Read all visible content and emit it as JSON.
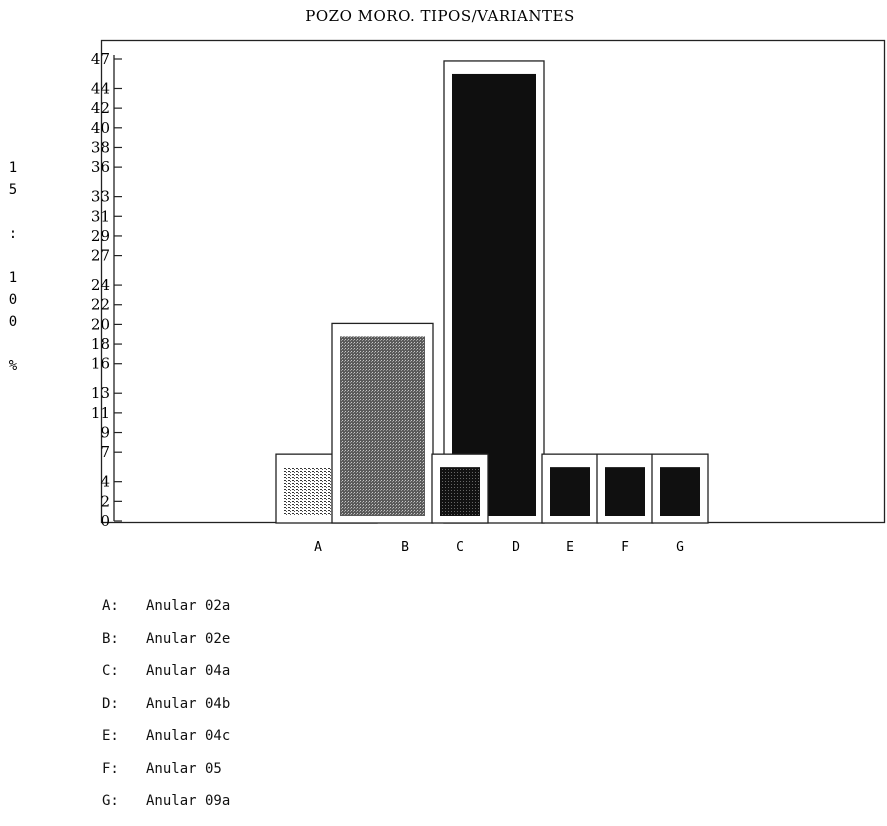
{
  "chart_data": {
    "type": "bar",
    "title": "POZO MORO. TIPOS/VARIANTES",
    "ylabel_chars": [
      "1",
      "5",
      ":",
      "1",
      "0",
      "0",
      "%"
    ],
    "y_ticks": [
      0,
      2,
      4,
      7,
      9,
      11,
      13,
      16,
      18,
      20,
      22,
      24,
      27,
      29,
      31,
      33,
      36,
      38,
      40,
      42,
      44,
      47
    ],
    "ylim": [
      0,
      47
    ],
    "categories": [
      "A",
      "B",
      "C",
      "D",
      "E",
      "F",
      "G"
    ],
    "values": [
      6.7,
      20,
      6.7,
      46.7,
      6.7,
      6.7,
      6.7
    ],
    "legend": [
      {
        "key": "A:",
        "label": "Anular 02a"
      },
      {
        "key": "B:",
        "label": "Anular 02e"
      },
      {
        "key": "C:",
        "label": "Anular 04a"
      },
      {
        "key": "D:",
        "label": "Anular 04b"
      },
      {
        "key": "E:",
        "label": "Anular 04c"
      },
      {
        "key": "F:",
        "label": "Anular 05"
      },
      {
        "key": "G:",
        "label": "Anular 09a"
      }
    ],
    "colors": {
      "A": "#d2d2d2",
      "B": "#6e6e6e",
      "C": "#181818",
      "D": "#0f0f0f",
      "E": "#101010",
      "F": "#101010",
      "G": "#101010"
    },
    "grid": false,
    "legend_placement": "bottom-left"
  }
}
